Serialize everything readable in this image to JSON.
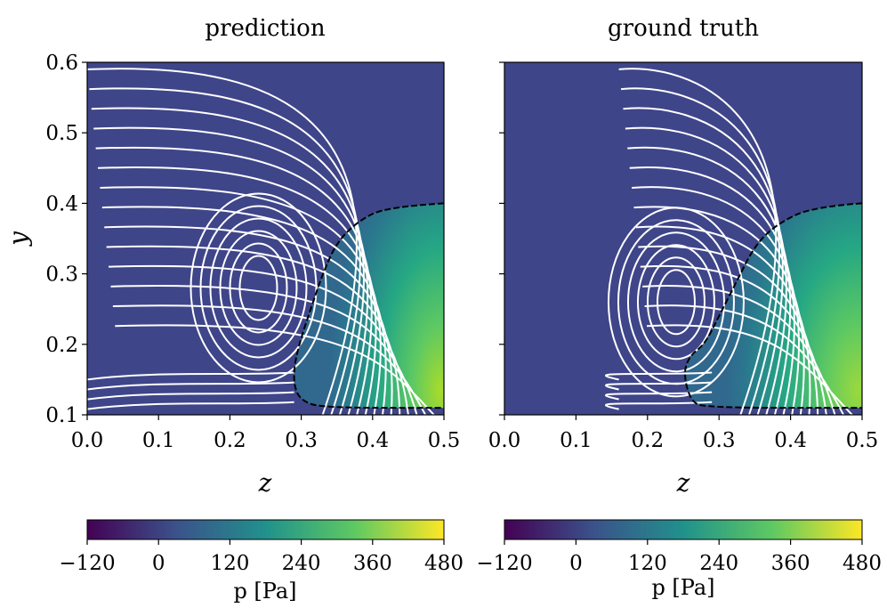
{
  "colorbar_ticks": [
    "−120",
    "0",
    "120",
    "240",
    "360",
    "480"
  ],
  "colorbar_label": "p [Pa]",
  "colors": {
    "background": "#3f4589",
    "streamline": "#ffffff",
    "interface": "#000000",
    "viridis": [
      "#440154",
      "#3b528b",
      "#21918c",
      "#5ec962",
      "#fde725"
    ]
  },
  "chart_data": [
    {
      "type": "heatmap",
      "title": "prediction",
      "xlabel": "z",
      "ylabel": "y",
      "xlim": [
        0.0,
        0.5
      ],
      "ylim": [
        0.1,
        0.6
      ],
      "xticks": [
        "0.0",
        "0.1",
        "0.2",
        "0.3",
        "0.4",
        "0.5"
      ],
      "yticks": [
        "0.1",
        "0.2",
        "0.3",
        "0.4",
        "0.5",
        "0.6"
      ],
      "color_range": [
        -120,
        480
      ],
      "vortex_center": [
        0.24,
        0.28
      ],
      "interface": [
        [
          0.5,
          0.4
        ],
        [
          0.42,
          0.395
        ],
        [
          0.38,
          0.375
        ],
        [
          0.35,
          0.345
        ],
        [
          0.33,
          0.3
        ],
        [
          0.315,
          0.255
        ],
        [
          0.3,
          0.21
        ],
        [
          0.29,
          0.17
        ],
        [
          0.29,
          0.14
        ],
        [
          0.3,
          0.12
        ],
        [
          0.33,
          0.11
        ],
        [
          0.5,
          0.11
        ]
      ]
    },
    {
      "type": "heatmap",
      "title": "ground truth",
      "xlabel": "z",
      "ylabel": "",
      "xlim": [
        0.0,
        0.5
      ],
      "ylim": [
        0.1,
        0.6
      ],
      "xticks": [
        "0.0",
        "0.1",
        "0.2",
        "0.3",
        "0.4",
        "0.5"
      ],
      "yticks": [],
      "color_range": [
        -120,
        480
      ],
      "vortex_center": [
        0.24,
        0.26
      ],
      "interface": [
        [
          0.5,
          0.4
        ],
        [
          0.43,
          0.395
        ],
        [
          0.38,
          0.37
        ],
        [
          0.35,
          0.34
        ],
        [
          0.325,
          0.29
        ],
        [
          0.3,
          0.24
        ],
        [
          0.28,
          0.2
        ],
        [
          0.26,
          0.185
        ],
        [
          0.25,
          0.16
        ],
        [
          0.26,
          0.12
        ],
        [
          0.28,
          0.11
        ],
        [
          0.5,
          0.11
        ]
      ]
    }
  ]
}
